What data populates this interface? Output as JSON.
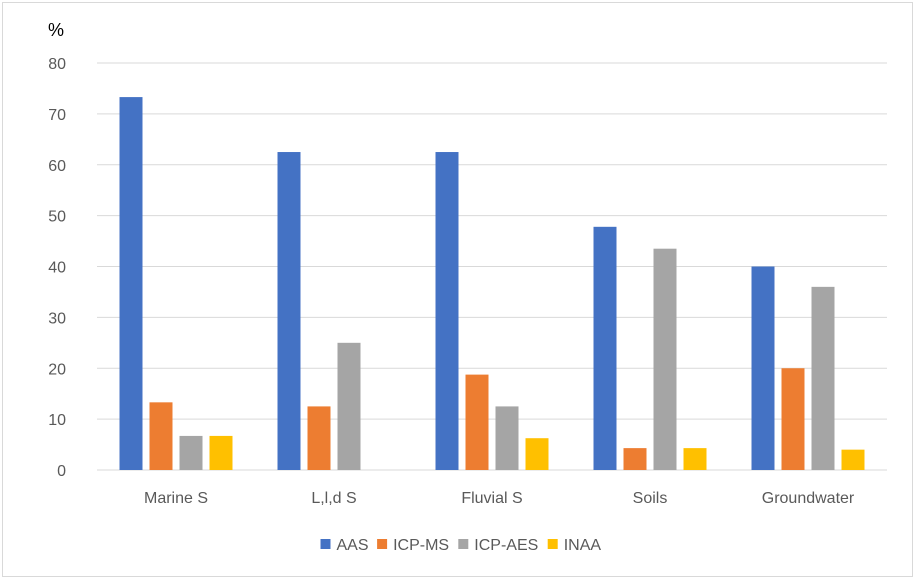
{
  "chart_data": {
    "type": "bar",
    "title": "",
    "xlabel": "",
    "ylabel": "%",
    "ylim": [
      0,
      80
    ],
    "yticks": [
      "0",
      "10",
      "20",
      "30",
      "40",
      "50",
      "60",
      "70",
      "80"
    ],
    "grid": true,
    "legend_position": "bottom",
    "categories": [
      "Marine S",
      "L,l,d S",
      "Fluvial S",
      "Soils",
      "Groundwater"
    ],
    "series": [
      {
        "name": "AAS",
        "color": "#4472C4",
        "values": [
          73.3,
          62.5,
          62.5,
          47.8,
          40
        ]
      },
      {
        "name": "ICP-MS",
        "color": "#ED7D31",
        "values": [
          13.3,
          12.5,
          18.75,
          4.3,
          20
        ]
      },
      {
        "name": "ICP-AES",
        "color": "#A5A5A5",
        "values": [
          6.7,
          25,
          12.5,
          43.5,
          36
        ]
      },
      {
        "name": "INAA",
        "color": "#FFC000",
        "values": [
          6.7,
          0,
          6.25,
          4.3,
          4
        ]
      }
    ]
  }
}
